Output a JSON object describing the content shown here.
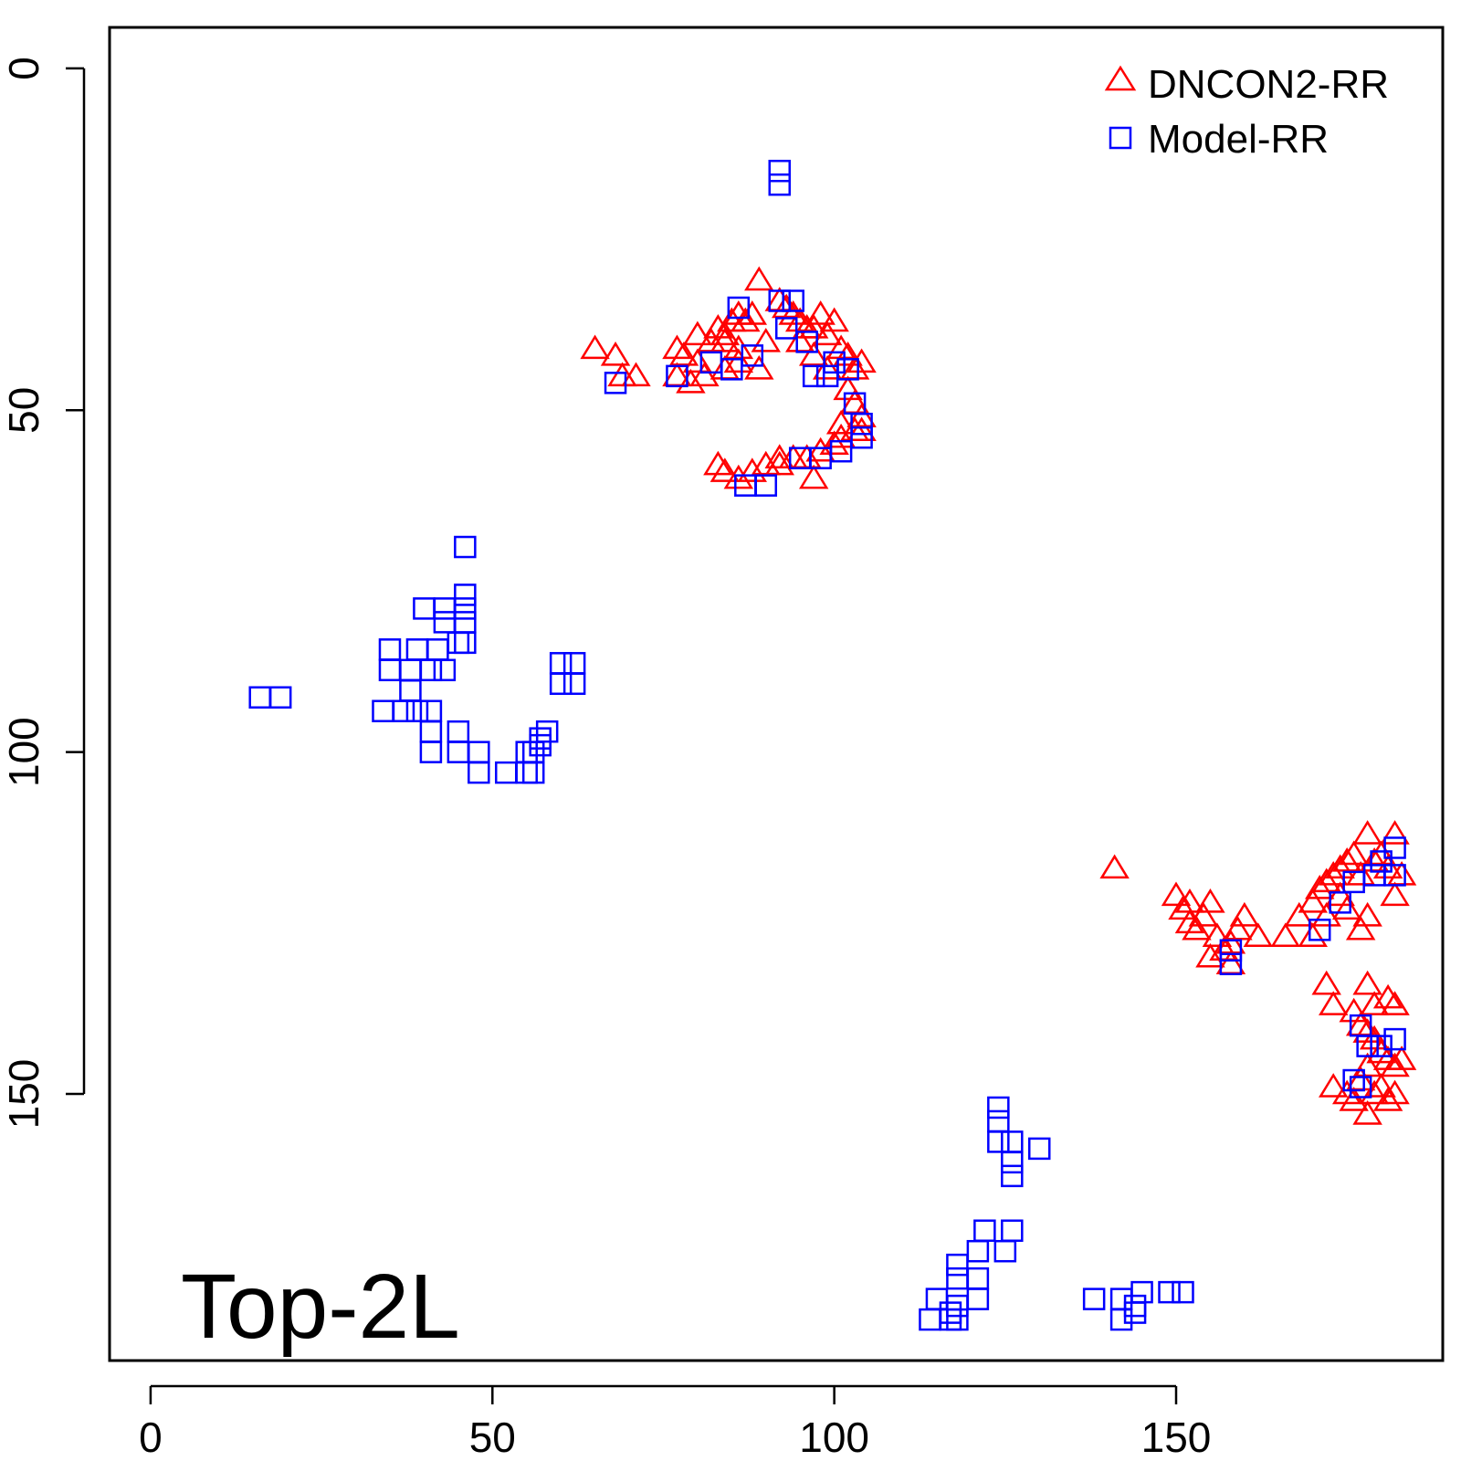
{
  "chart_data": {
    "type": "scatter",
    "annotation": "Top-2L",
    "xlabel": "",
    "ylabel": "",
    "xlim": [
      -6,
      189
    ],
    "ylim": [
      -6,
      189
    ],
    "y_reversed": true,
    "x_ticks": [
      0,
      50,
      100,
      150
    ],
    "y_ticks": [
      0,
      50,
      100,
      150
    ],
    "grid": false,
    "legend_position": "top-right",
    "series": [
      {
        "name": "DNCON2-RR",
        "marker": "triangle",
        "color": "#ff0000",
        "points": [
          [
            65,
            41
          ],
          [
            68,
            42
          ],
          [
            69,
            45
          ],
          [
            71,
            45
          ],
          [
            77,
            41
          ],
          [
            78,
            42
          ],
          [
            80,
            43
          ],
          [
            82,
            40
          ],
          [
            83,
            38
          ],
          [
            84,
            39
          ],
          [
            85,
            37
          ],
          [
            86,
            36
          ],
          [
            87,
            37
          ],
          [
            88,
            36
          ],
          [
            89,
            31
          ],
          [
            86,
            41
          ],
          [
            84,
            44
          ],
          [
            81,
            45
          ],
          [
            79,
            46
          ],
          [
            77,
            45
          ],
          [
            90,
            40
          ],
          [
            86,
            43
          ],
          [
            89,
            44
          ],
          [
            84,
            40
          ],
          [
            80,
            39
          ],
          [
            92,
            34
          ],
          [
            93,
            35
          ],
          [
            94,
            36
          ],
          [
            95,
            37
          ],
          [
            96,
            38
          ],
          [
            97,
            38
          ],
          [
            98,
            36
          ],
          [
            99,
            39
          ],
          [
            100,
            37
          ],
          [
            101,
            41
          ],
          [
            102,
            42
          ],
          [
            103,
            44
          ],
          [
            104,
            43
          ],
          [
            99,
            44
          ],
          [
            97,
            42
          ],
          [
            95,
            40
          ],
          [
            102,
            47
          ],
          [
            103,
            49
          ],
          [
            104,
            51
          ],
          [
            103,
            53
          ],
          [
            101,
            54
          ],
          [
            100,
            55
          ],
          [
            98,
            56
          ],
          [
            96,
            57
          ],
          [
            94,
            57
          ],
          [
            92,
            58
          ],
          [
            90,
            58
          ],
          [
            88,
            59
          ],
          [
            86,
            60
          ],
          [
            84,
            59
          ],
          [
            83,
            58
          ],
          [
            97,
            60
          ],
          [
            101,
            52
          ],
          [
            104,
            53
          ],
          [
            92,
            57
          ],
          [
            141,
            117
          ],
          [
            150,
            121
          ],
          [
            151,
            123
          ],
          [
            152,
            125
          ],
          [
            153,
            126
          ],
          [
            154,
            124
          ],
          [
            155,
            122
          ],
          [
            156,
            127
          ],
          [
            157,
            129
          ],
          [
            158,
            128
          ],
          [
            159,
            126
          ],
          [
            160,
            124
          ],
          [
            162,
            127
          ],
          [
            158,
            131
          ],
          [
            155,
            130
          ],
          [
            152,
            122
          ],
          [
            166,
            127
          ],
          [
            168,
            124
          ],
          [
            170,
            122
          ],
          [
            171,
            120
          ],
          [
            172,
            119
          ],
          [
            173,
            118
          ],
          [
            174,
            117
          ],
          [
            175,
            116
          ],
          [
            176,
            115
          ],
          [
            177,
            118
          ],
          [
            178,
            112
          ],
          [
            179,
            116
          ],
          [
            180,
            115
          ],
          [
            181,
            117
          ],
          [
            182,
            112
          ],
          [
            183,
            118
          ],
          [
            182,
            121
          ],
          [
            175,
            123
          ],
          [
            172,
            124
          ],
          [
            170,
            127
          ],
          [
            178,
            124
          ],
          [
            174,
            121
          ],
          [
            177,
            126
          ],
          [
            172,
            134
          ],
          [
            173,
            137
          ],
          [
            176,
            138
          ],
          [
            178,
            134
          ],
          [
            179,
            137
          ],
          [
            181,
            136
          ],
          [
            182,
            137
          ],
          [
            177,
            140
          ],
          [
            178,
            141
          ],
          [
            179,
            142
          ],
          [
            180,
            144
          ],
          [
            181,
            145
          ],
          [
            182,
            146
          ],
          [
            183,
            145
          ],
          [
            178,
            146
          ],
          [
            177,
            148
          ],
          [
            179,
            150
          ],
          [
            181,
            151
          ],
          [
            182,
            150
          ],
          [
            176,
            151
          ],
          [
            178,
            153
          ],
          [
            173,
            149
          ],
          [
            175,
            150
          ],
          [
            180,
            149
          ]
        ]
      },
      {
        "name": "Model-RR",
        "marker": "square",
        "color": "#0000ff",
        "points": [
          [
            92,
            15
          ],
          [
            92,
            17
          ],
          [
            68,
            46
          ],
          [
            77,
            45
          ],
          [
            82,
            43
          ],
          [
            85,
            44
          ],
          [
            88,
            42
          ],
          [
            86,
            35
          ],
          [
            92,
            34
          ],
          [
            94,
            34
          ],
          [
            93,
            38
          ],
          [
            96,
            40
          ],
          [
            97,
            45
          ],
          [
            99,
            45
          ],
          [
            100,
            43
          ],
          [
            102,
            44
          ],
          [
            103,
            49
          ],
          [
            104,
            52
          ],
          [
            104,
            54
          ],
          [
            101,
            56
          ],
          [
            98,
            57
          ],
          [
            95,
            57
          ],
          [
            90,
            61
          ],
          [
            87,
            61
          ],
          [
            46,
            70
          ],
          [
            46,
            77
          ],
          [
            46,
            79
          ],
          [
            46,
            81
          ],
          [
            46,
            84
          ],
          [
            45,
            84
          ],
          [
            43,
            81
          ],
          [
            43,
            79
          ],
          [
            40,
            79
          ],
          [
            39,
            85
          ],
          [
            42,
            85
          ],
          [
            43,
            88
          ],
          [
            41,
            88
          ],
          [
            35,
            85
          ],
          [
            35,
            88
          ],
          [
            38,
            88
          ],
          [
            38,
            91
          ],
          [
            16,
            92
          ],
          [
            19,
            92
          ],
          [
            60,
            87
          ],
          [
            62,
            87
          ],
          [
            60,
            90
          ],
          [
            62,
            90
          ],
          [
            34,
            94
          ],
          [
            37,
            94
          ],
          [
            39,
            94
          ],
          [
            41,
            94
          ],
          [
            41,
            97
          ],
          [
            41,
            100
          ],
          [
            45,
            97
          ],
          [
            45,
            100
          ],
          [
            48,
            100
          ],
          [
            48,
            103
          ],
          [
            52,
            103
          ],
          [
            55,
            103
          ],
          [
            56,
            103
          ],
          [
            55,
            100
          ],
          [
            56,
            100
          ],
          [
            57,
            98
          ],
          [
            57,
            99
          ],
          [
            58,
            97
          ],
          [
            158,
            129
          ],
          [
            158,
            131
          ],
          [
            171,
            126
          ],
          [
            174,
            122
          ],
          [
            176,
            119
          ],
          [
            179,
            118
          ],
          [
            180,
            116
          ],
          [
            182,
            114
          ],
          [
            182,
            118
          ],
          [
            177,
            140
          ],
          [
            178,
            143
          ],
          [
            180,
            143
          ],
          [
            182,
            142
          ],
          [
            176,
            148
          ],
          [
            177,
            149
          ],
          [
            124,
            152
          ],
          [
            124,
            154
          ],
          [
            124,
            157
          ],
          [
            126,
            157
          ],
          [
            126,
            160
          ],
          [
            126,
            162
          ],
          [
            130,
            158
          ],
          [
            122,
            170
          ],
          [
            126,
            170
          ],
          [
            125,
            173
          ],
          [
            121,
            173
          ],
          [
            118,
            175
          ],
          [
            118,
            177
          ],
          [
            121,
            177
          ],
          [
            121,
            180
          ],
          [
            115,
            180
          ],
          [
            117,
            182
          ],
          [
            118,
            181
          ],
          [
            114,
            183
          ],
          [
            117,
            183
          ],
          [
            118,
            183
          ],
          [
            138,
            180
          ],
          [
            142,
            180
          ],
          [
            144,
            181
          ],
          [
            145,
            179
          ],
          [
            142,
            183
          ],
          [
            144,
            182
          ],
          [
            149,
            179
          ],
          [
            151,
            179
          ]
        ]
      }
    ]
  }
}
